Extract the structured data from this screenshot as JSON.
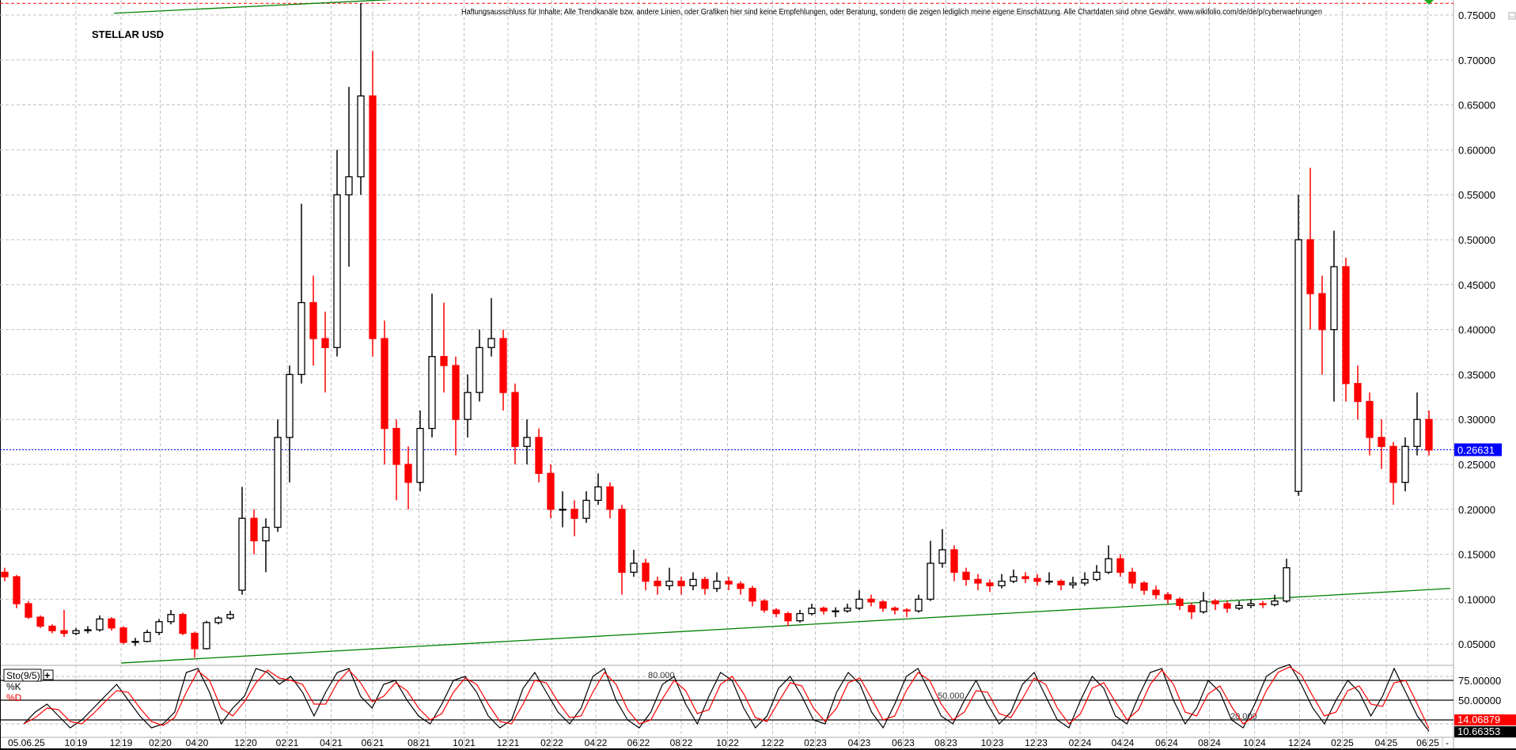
{
  "header": {
    "title": "STELLAR USD",
    "disclaimer": "Haftungsausschluss für Inhalte: Alle Trendkanäle bzw. andere Linien, oder Grafiken hier sind keine Empfehlungen, oder Beratung, sondern die zeigen lediglich meine eigene Einschätzung. Alle Chartdaten sind ohne Gewähr.  www.wikifolio.com/de/de/p/cyberwaehrungen",
    "collapse_button": "−"
  },
  "chart_data": [
    {
      "type": "candlestick",
      "title": "STELLAR USD",
      "ylim": [
        0.03,
        0.77
      ],
      "yticks": [
        "0.75000",
        "0.70000",
        "0.65000",
        "0.60000",
        "0.55000",
        "0.50000",
        "0.45000",
        "0.40000",
        "0.35000",
        "0.30000",
        "0.25000",
        "0.20000",
        "0.15000",
        "0.10000",
        "0.05000"
      ],
      "grid": true,
      "last_price": "0.26631",
      "colors": {
        "up": "#000000",
        "down": "#ff0000",
        "trendline": "#008000",
        "last_price": "#0000ff",
        "high_line": "#ff0000"
      },
      "candles_ohlc": [
        [
          0.13,
          0.135,
          0.12,
          0.125
        ],
        [
          0.125,
          0.127,
          0.09,
          0.095
        ],
        [
          0.095,
          0.098,
          0.078,
          0.08
        ],
        [
          0.08,
          0.082,
          0.068,
          0.07
        ],
        [
          0.07,
          0.072,
          0.062,
          0.065
        ],
        [
          0.065,
          0.088,
          0.058,
          0.062
        ],
        [
          0.062,
          0.068,
          0.06,
          0.065
        ],
        [
          0.065,
          0.07,
          0.062,
          0.066
        ],
        [
          0.066,
          0.082,
          0.064,
          0.078
        ],
        [
          0.078,
          0.08,
          0.065,
          0.068
        ],
        [
          0.068,
          0.07,
          0.05,
          0.052
        ],
        [
          0.052,
          0.057,
          0.048,
          0.053
        ],
        [
          0.053,
          0.066,
          0.052,
          0.063
        ],
        [
          0.063,
          0.078,
          0.06,
          0.075
        ],
        [
          0.075,
          0.088,
          0.072,
          0.083
        ],
        [
          0.083,
          0.085,
          0.06,
          0.062
        ],
        [
          0.062,
          0.064,
          0.035,
          0.045
        ],
        [
          0.045,
          0.076,
          0.044,
          0.074
        ],
        [
          0.074,
          0.081,
          0.072,
          0.079
        ],
        [
          0.079,
          0.087,
          0.077,
          0.083
        ],
        [
          0.11,
          0.225,
          0.105,
          0.19
        ],
        [
          0.19,
          0.2,
          0.15,
          0.165
        ],
        [
          0.165,
          0.19,
          0.13,
          0.18
        ],
        [
          0.18,
          0.3,
          0.175,
          0.28
        ],
        [
          0.28,
          0.36,
          0.23,
          0.35
        ],
        [
          0.35,
          0.54,
          0.34,
          0.43
        ],
        [
          0.43,
          0.46,
          0.36,
          0.39
        ],
        [
          0.39,
          0.42,
          0.33,
          0.38
        ],
        [
          0.38,
          0.6,
          0.37,
          0.55
        ],
        [
          0.55,
          0.67,
          0.47,
          0.57
        ],
        [
          0.57,
          0.763,
          0.55,
          0.66
        ],
        [
          0.66,
          0.71,
          0.37,
          0.39
        ],
        [
          0.39,
          0.41,
          0.25,
          0.29
        ],
        [
          0.29,
          0.3,
          0.21,
          0.25
        ],
        [
          0.25,
          0.27,
          0.2,
          0.23
        ],
        [
          0.23,
          0.31,
          0.22,
          0.29
        ],
        [
          0.29,
          0.44,
          0.28,
          0.37
        ],
        [
          0.37,
          0.43,
          0.33,
          0.36
        ],
        [
          0.36,
          0.37,
          0.26,
          0.3
        ],
        [
          0.3,
          0.35,
          0.28,
          0.33
        ],
        [
          0.33,
          0.4,
          0.32,
          0.38
        ],
        [
          0.38,
          0.435,
          0.37,
          0.39
        ],
        [
          0.39,
          0.4,
          0.31,
          0.33
        ],
        [
          0.33,
          0.34,
          0.25,
          0.27
        ],
        [
          0.27,
          0.3,
          0.25,
          0.28
        ],
        [
          0.28,
          0.29,
          0.23,
          0.24
        ],
        [
          0.24,
          0.25,
          0.19,
          0.2
        ],
        [
          0.2,
          0.22,
          0.18,
          0.2
        ],
        [
          0.2,
          0.21,
          0.17,
          0.19
        ],
        [
          0.19,
          0.22,
          0.185,
          0.21
        ],
        [
          0.21,
          0.24,
          0.205,
          0.225
        ],
        [
          0.225,
          0.23,
          0.19,
          0.2
        ],
        [
          0.2,
          0.205,
          0.105,
          0.13
        ],
        [
          0.13,
          0.155,
          0.125,
          0.14
        ],
        [
          0.14,
          0.145,
          0.11,
          0.12
        ],
        [
          0.12,
          0.125,
          0.105,
          0.115
        ],
        [
          0.115,
          0.135,
          0.11,
          0.12
        ],
        [
          0.12,
          0.125,
          0.105,
          0.115
        ],
        [
          0.115,
          0.13,
          0.11,
          0.122
        ],
        [
          0.122,
          0.125,
          0.105,
          0.112
        ],
        [
          0.112,
          0.13,
          0.108,
          0.12
        ],
        [
          0.12,
          0.125,
          0.11,
          0.117
        ],
        [
          0.117,
          0.12,
          0.105,
          0.112
        ],
        [
          0.112,
          0.115,
          0.092,
          0.098
        ],
        [
          0.098,
          0.1,
          0.085,
          0.088
        ],
        [
          0.088,
          0.09,
          0.08,
          0.084
        ],
        [
          0.084,
          0.086,
          0.07,
          0.076
        ],
        [
          0.076,
          0.088,
          0.074,
          0.084
        ],
        [
          0.084,
          0.095,
          0.082,
          0.09
        ],
        [
          0.09,
          0.092,
          0.083,
          0.087
        ],
        [
          0.087,
          0.091,
          0.08,
          0.087
        ],
        [
          0.087,
          0.095,
          0.085,
          0.09
        ],
        [
          0.09,
          0.11,
          0.088,
          0.1
        ],
        [
          0.1,
          0.105,
          0.092,
          0.097
        ],
        [
          0.097,
          0.099,
          0.086,
          0.09
        ],
        [
          0.09,
          0.092,
          0.083,
          0.088
        ],
        [
          0.088,
          0.09,
          0.08,
          0.087
        ],
        [
          0.087,
          0.105,
          0.085,
          0.1
        ],
        [
          0.1,
          0.165,
          0.098,
          0.14
        ],
        [
          0.14,
          0.178,
          0.135,
          0.155
        ],
        [
          0.155,
          0.16,
          0.12,
          0.13
        ],
        [
          0.13,
          0.135,
          0.115,
          0.122
        ],
        [
          0.122,
          0.128,
          0.11,
          0.118
        ],
        [
          0.118,
          0.122,
          0.108,
          0.115
        ],
        [
          0.115,
          0.128,
          0.112,
          0.12
        ],
        [
          0.12,
          0.133,
          0.118,
          0.125
        ],
        [
          0.125,
          0.13,
          0.118,
          0.123
        ],
        [
          0.123,
          0.128,
          0.115,
          0.12
        ],
        [
          0.12,
          0.13,
          0.116,
          0.12
        ],
        [
          0.12,
          0.122,
          0.11,
          0.116
        ],
        [
          0.116,
          0.125,
          0.112,
          0.118
        ],
        [
          0.118,
          0.13,
          0.115,
          0.122
        ],
        [
          0.122,
          0.138,
          0.12,
          0.13
        ],
        [
          0.13,
          0.16,
          0.128,
          0.145
        ],
        [
          0.145,
          0.15,
          0.125,
          0.13
        ],
        [
          0.13,
          0.135,
          0.112,
          0.118
        ],
        [
          0.118,
          0.12,
          0.105,
          0.11
        ],
        [
          0.11,
          0.115,
          0.1,
          0.105
        ],
        [
          0.105,
          0.108,
          0.095,
          0.1
        ],
        [
          0.1,
          0.102,
          0.088,
          0.093
        ],
        [
          0.093,
          0.096,
          0.078,
          0.086
        ],
        [
          0.086,
          0.108,
          0.084,
          0.098
        ],
        [
          0.098,
          0.1,
          0.088,
          0.095
        ],
        [
          0.095,
          0.098,
          0.085,
          0.09
        ],
        [
          0.09,
          0.098,
          0.088,
          0.093
        ],
        [
          0.093,
          0.1,
          0.09,
          0.095
        ],
        [
          0.095,
          0.098,
          0.09,
          0.094
        ],
        [
          0.094,
          0.105,
          0.092,
          0.098
        ],
        [
          0.098,
          0.145,
          0.096,
          0.135
        ],
        [
          0.22,
          0.55,
          0.215,
          0.5
        ],
        [
          0.5,
          0.58,
          0.4,
          0.44
        ],
        [
          0.44,
          0.46,
          0.35,
          0.4
        ],
        [
          0.4,
          0.51,
          0.32,
          0.47
        ],
        [
          0.47,
          0.48,
          0.32,
          0.34
        ],
        [
          0.34,
          0.36,
          0.3,
          0.32
        ],
        [
          0.32,
          0.33,
          0.26,
          0.28
        ],
        [
          0.28,
          0.3,
          0.245,
          0.27
        ],
        [
          0.27,
          0.275,
          0.205,
          0.23
        ],
        [
          0.23,
          0.28,
          0.22,
          0.27
        ],
        [
          0.27,
          0.33,
          0.26,
          0.3
        ],
        [
          0.3,
          0.31,
          0.26,
          0.266
        ]
      ],
      "trendlines": [
        {
          "from": [
            9.2,
            0.752
          ],
          "to": [
            33.8,
            0.768
          ]
        },
        {
          "from": [
            9.8,
            0.029
          ],
          "to": [
            121.8,
            0.112
          ]
        }
      ],
      "high_line": 0.763
    },
    {
      "type": "line",
      "title": "Sto(9/5)",
      "ylim": [
        0,
        100
      ],
      "levels": [
        75,
        50,
        25
      ],
      "dashed_levels": [
        80,
        20
      ],
      "level_labels": [
        "80.000",
        "50.000",
        "20.000"
      ],
      "yticks": [
        "75.00000",
        "50.00000"
      ],
      "series": [
        {
          "name": "%K",
          "color": "#000000",
          "last": "10.66353",
          "values": [
            20,
            35,
            45,
            30,
            15,
            25,
            40,
            55,
            70,
            50,
            30,
            15,
            20,
            35,
            85,
            90,
            60,
            20,
            40,
            55,
            90,
            85,
            70,
            80,
            60,
            30,
            60,
            85,
            90,
            55,
            40,
            70,
            75,
            50,
            30,
            20,
            45,
            75,
            80,
            60,
            30,
            15,
            25,
            65,
            85,
            60,
            35,
            20,
            40,
            80,
            90,
            50,
            25,
            15,
            35,
            70,
            80,
            45,
            20,
            55,
            85,
            75,
            40,
            15,
            30,
            65,
            80,
            55,
            25,
            20,
            60,
            85,
            70,
            35,
            15,
            45,
            80,
            90,
            60,
            30,
            20,
            50,
            75,
            45,
            20,
            35,
            70,
            85,
            55,
            25,
            15,
            50,
            80,
            65,
            30,
            20,
            55,
            85,
            90,
            50,
            20,
            40,
            75,
            60,
            25,
            15,
            45,
            80,
            90,
            95,
            70,
            40,
            20,
            50,
            75,
            60,
            30,
            55,
            90,
            60,
            30,
            10.66
          ]
        },
        {
          "name": "%D",
          "color": "#ff0000",
          "last": "14.06879",
          "values": [
            20,
            28,
            40,
            38,
            23,
            20,
            33,
            48,
            62,
            60,
            40,
            23,
            18,
            28,
            60,
            87,
            75,
            40,
            30,
            48,
            72,
            88,
            78,
            75,
            70,
            45,
            45,
            72,
            88,
            72,
            48,
            55,
            72,
            62,
            40,
            25,
            33,
            60,
            78,
            70,
            45,
            23,
            20,
            45,
            75,
            72,
            48,
            28,
            30,
            60,
            85,
            70,
            38,
            20,
            25,
            52,
            75,
            62,
            33,
            38,
            70,
            80,
            58,
            28,
            23,
            48,
            72,
            68,
            40,
            23,
            40,
            72,
            78,
            52,
            25,
            30,
            62,
            85,
            75,
            45,
            25,
            35,
            62,
            60,
            33,
            28,
            52,
            78,
            70,
            40,
            20,
            33,
            65,
            72,
            48,
            25,
            38,
            70,
            88,
            70,
            35,
            30,
            58,
            68,
            42,
            20,
            30,
            62,
            85,
            92,
            82,
            55,
            30,
            35,
            62,
            68,
            45,
            42,
            72,
            75,
            45,
            14.07
          ]
        }
      ]
    }
  ],
  "x_axis": {
    "first_label": "05.06.25",
    "ticks": [
      {
        "m": "10",
        "y": "19",
        "i": 6.0
      },
      {
        "m": "12",
        "y": "19",
        "i": 9.8
      },
      {
        "m": "02",
        "y": "20",
        "i": 13.1
      },
      {
        "m": "04",
        "y": "20",
        "i": 16.2
      },
      {
        "m": "12",
        "y": "20",
        "i": 20.3
      },
      {
        "m": "02",
        "y": "21",
        "i": 23.8
      },
      {
        "m": "04",
        "y": "21",
        "i": 27.5
      },
      {
        "m": "06",
        "y": "21",
        "i": 31.0
      },
      {
        "m": "08",
        "y": "21",
        "i": 34.9
      },
      {
        "m": "10",
        "y": "21",
        "i": 38.7
      },
      {
        "m": "12",
        "y": "21",
        "i": 42.4
      },
      {
        "m": "02",
        "y": "22",
        "i": 46.1
      },
      {
        "m": "04",
        "y": "22",
        "i": 49.8
      },
      {
        "m": "06",
        "y": "22",
        "i": 53.4
      },
      {
        "m": "08",
        "y": "22",
        "i": 57.0
      },
      {
        "m": "10",
        "y": "22",
        "i": 60.9
      },
      {
        "m": "12",
        "y": "22",
        "i": 64.7
      },
      {
        "m": "02",
        "y": "23",
        "i": 68.3
      },
      {
        "m": "04",
        "y": "23",
        "i": 72.0
      },
      {
        "m": "06",
        "y": "23",
        "i": 75.7
      },
      {
        "m": "08",
        "y": "23",
        "i": 79.3
      },
      {
        "m": "10",
        "y": "23",
        "i": 83.2
      },
      {
        "m": "12",
        "y": "23",
        "i": 86.9
      },
      {
        "m": "02",
        "y": "24",
        "i": 90.6
      },
      {
        "m": "04",
        "y": "24",
        "i": 94.2
      },
      {
        "m": "06",
        "y": "24",
        "i": 97.9
      },
      {
        "m": "08",
        "y": "24",
        "i": 101.5
      },
      {
        "m": "10",
        "y": "24",
        "i": 105.3
      },
      {
        "m": "12",
        "y": "24",
        "i": 109.1
      },
      {
        "m": "02",
        "y": "25",
        "i": 112.7
      },
      {
        "m": "04",
        "y": "25",
        "i": 116.4
      },
      {
        "m": "06",
        "y": "25",
        "i": 119.9
      }
    ],
    "end_marker": "-"
  },
  "indicator_panel": {
    "label": "Sto(9/5)",
    "add_button": "+",
    "legend_k": "%K",
    "legend_d": "%D"
  }
}
